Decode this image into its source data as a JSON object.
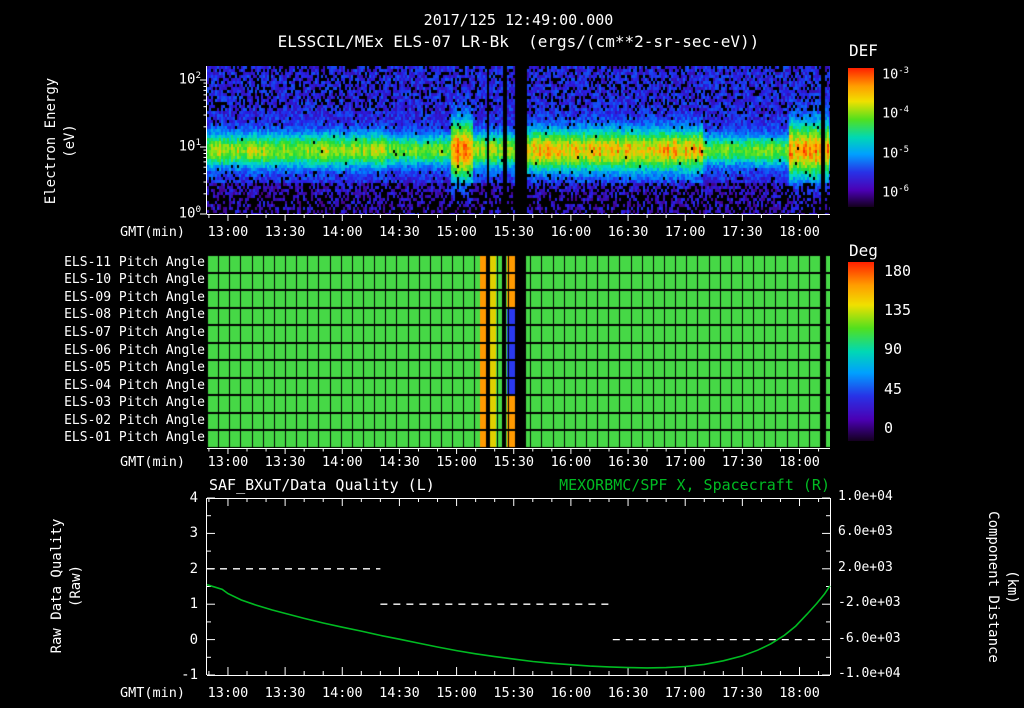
{
  "header": {
    "timestamp": "2017/125 12:49:00.000",
    "title": "ELSSCIL/MEx ELS-07 LR-Bk",
    "units": "(ergs/(cm**2-sr-sec-eV))"
  },
  "colors": {
    "background": "#000000",
    "text": "#ffffff",
    "accent_green": "#00bb22",
    "pitch_green": "#46d846"
  },
  "x_axis": {
    "label": "GMT(min)",
    "ticks": [
      "13:00",
      "13:30",
      "14:00",
      "14:30",
      "15:00",
      "15:30",
      "16:00",
      "16:30",
      "17:00",
      "17:30",
      "18:00"
    ]
  },
  "spectrogram": {
    "ylabel_line1": "Electron Energy",
    "ylabel_line2": "(eV)",
    "y_ticks": [
      "10^2",
      "10^1",
      "10^0"
    ],
    "colorbar_title": "DEF",
    "colorbar_ticks": [
      "10^-3",
      "10^-4",
      "10^-5",
      "10^-6"
    ]
  },
  "pitch": {
    "rows": [
      "ELS-11 Pitch Angle",
      "ELS-10 Pitch Angle",
      "ELS-09 Pitch Angle",
      "ELS-08 Pitch Angle",
      "ELS-07 Pitch Angle",
      "ELS-06 Pitch Angle",
      "ELS-05 Pitch Angle",
      "ELS-04 Pitch Angle",
      "ELS-03 Pitch Angle",
      "ELS-02 Pitch Angle",
      "ELS-01 Pitch Angle"
    ],
    "colorbar_title": "Deg",
    "colorbar_ticks": [
      "180",
      "135",
      "90",
      "45",
      "0"
    ]
  },
  "quality": {
    "left_title": "SAF_BXuT/Data Quality (L)",
    "right_title": "MEXORBMC/SPF X, Spacecraft (R)",
    "ylabel_left1": "Raw Data Quality",
    "ylabel_left2": "(Raw)",
    "ylabel_right1": "Component Distance",
    "ylabel_right2": "(km)",
    "left_ticks": [
      "4",
      "3",
      "2",
      "1",
      "0",
      "-1"
    ],
    "right_ticks": [
      "1.0e+04",
      "6.0e+03",
      "2.0e+03",
      "-2.0e+03",
      "-6.0e+03",
      "-1.0e+04"
    ]
  },
  "chart_data": [
    {
      "type": "heatmap",
      "name": "electron-energy-spectrogram",
      "title": "ELSSCIL/MEx ELS-07 LR-Bk",
      "units": "ergs/(cm**2-sr-sec-eV)",
      "x_start": "12:49",
      "x_end": "18:16",
      "x_ticks": [
        "13:00",
        "13:30",
        "14:00",
        "14:30",
        "15:00",
        "15:30",
        "16:00",
        "16:30",
        "17:00",
        "17:30",
        "18:00"
      ],
      "y_scale": "log",
      "y_range_eV": [
        1,
        162
      ],
      "colorbar": {
        "label": "DEF",
        "ticks_log10": [
          -3,
          -4,
          -5,
          -6
        ]
      },
      "features": {
        "main_band": "persistent electron flux band centered near 8-12 eV, green/cyan, ~1e-4 level",
        "background": "purple-blue noise near 1e-5.5 to 1e-6 with black dropout bins, denser black above 30 eV before 14:30 and below 3 eV",
        "burst_1500": "bright wide enhancement at ~15:00 reaching ~30 eV",
        "bright_interval": "15:36-17:05 band brighter, yellow-green",
        "right_edge_enhancement": "18:00-18:16 bright patch reaching ~40 eV",
        "data_gaps": [
          "15:15-15:18",
          "15:24-15:26",
          "15:31-15:37",
          "18:11-18:13"
        ]
      },
      "render": {
        "band_center_log10eV": 0.95,
        "base": {
          "amp": 0.5,
          "sigma": 0.17
        },
        "intervals": [
          {
            "m": [
              95,
              128
            ],
            "amp": 0.45,
            "sigma": 0.15
          },
          {
            "m": [
              128,
              140
            ],
            "amp": 0.68,
            "sigma": 0.3
          },
          {
            "m": [
              167,
              260
            ],
            "amp": 0.6,
            "sigma": 0.21
          },
          {
            "m": [
              260,
              305
            ],
            "amp": 0.44,
            "sigma": 0.15
          },
          {
            "m": [
              305,
              327
            ],
            "amp": 0.64,
            "sigma": 0.28
          }
        ],
        "gaps_min": [
          [
            146.5,
            148.5
          ],
          [
            155,
            157
          ],
          [
            162,
            167.5
          ],
          [
            322,
            324.5
          ]
        ]
      }
    },
    {
      "type": "heatmap",
      "name": "pitch-angle-panel",
      "rows": [
        "ELS-11 Pitch Angle",
        "ELS-10 Pitch Angle",
        "ELS-09 Pitch Angle",
        "ELS-08 Pitch Angle",
        "ELS-07 Pitch Angle",
        "ELS-06 Pitch Angle",
        "ELS-05 Pitch Angle",
        "ELS-04 Pitch Angle",
        "ELS-03 Pitch Angle",
        "ELS-02 Pitch Angle",
        "ELS-01 Pitch Angle"
      ],
      "x_ticks": [
        "13:00",
        "13:30",
        "14:00",
        "14:30",
        "15:00",
        "15:30",
        "16:00",
        "16:30",
        "17:00",
        "17:30",
        "18:00"
      ],
      "value_units": "degrees",
      "colorbar": {
        "label": "Deg",
        "min": 0,
        "max": 180,
        "ticks": [
          180,
          135,
          90,
          45,
          0
        ]
      },
      "typical_value_deg": 95,
      "render": {
        "base_color": "#46d846",
        "grid_minutes": 5.85,
        "anomalies": [
          {
            "m": [
              143.5,
              146.5
            ],
            "rows": [
              0,
              10
            ],
            "color": "#ff9a00",
            "approx_deg": 150
          },
          {
            "m": [
              148.5,
              151.5
            ],
            "rows": [
              0,
              10
            ],
            "color": "#e0d000",
            "approx_deg": 130
          },
          {
            "m": [
              157.5,
              161.5
            ],
            "rows": [
              0,
              2
            ],
            "color": "#ff9a00",
            "approx_deg": 150
          },
          {
            "m": [
              157.5,
              161.5
            ],
            "rows": [
              3,
              7
            ],
            "color": "#2a39f0",
            "approx_deg": 30
          },
          {
            "m": [
              157.5,
              161.5
            ],
            "rows": [
              8,
              10
            ],
            "color": "#ff9a00",
            "approx_deg": 150
          }
        ],
        "gaps_min": [
          [
            146.5,
            148.5
          ],
          [
            155,
            157
          ],
          [
            161.5,
            167.5
          ],
          [
            321.5,
            324.5
          ]
        ]
      }
    },
    {
      "type": "line",
      "name": "quality-and-spacecraft-distance",
      "x_start": "12:49",
      "x_end": "18:16",
      "x_ticks": [
        "13:00",
        "13:30",
        "14:00",
        "14:30",
        "15:00",
        "15:30",
        "16:00",
        "16:30",
        "17:00",
        "17:30",
        "18:00"
      ],
      "left_axis": {
        "label": "Raw Data Quality (Raw)",
        "min": -1,
        "max": 4,
        "ticks": [
          4,
          3,
          2,
          1,
          0,
          -1
        ]
      },
      "right_axis": {
        "label": "Component Distance (km)",
        "min": -10000,
        "max": 10000,
        "ticks": [
          10000,
          6000,
          2000,
          -2000,
          -6000,
          -10000
        ],
        "km_per_left_unit": 4000,
        "km_offset_at_left_zero": -6000
      },
      "series": [
        {
          "name": "SAF_BXuT/Data Quality (L)",
          "axis": "left",
          "style": "dashed",
          "color": "#ffffff",
          "segments_min_value": [
            [
              0,
              91,
              2
            ],
            [
              91,
              211,
              1
            ],
            [
              213,
              321,
              0
            ]
          ]
        },
        {
          "name": "MEXORBMC/SPF X, Spacecraft (R)",
          "axis": "right",
          "style": "solid",
          "color": "#00bb22",
          "points_min_leftunits": [
            [
              0,
              1.55
            ],
            [
              8,
              1.42
            ],
            [
              11,
              1.3
            ],
            [
              18,
              1.12
            ],
            [
              26,
              0.97
            ],
            [
              34,
              0.84
            ],
            [
              41,
              0.74
            ],
            [
              51,
              0.6
            ],
            [
              61,
              0.47
            ],
            [
              71,
              0.35
            ],
            [
              81,
              0.24
            ],
            [
              91,
              0.12
            ],
            [
              101,
              0.01
            ],
            [
              111,
              -0.1
            ],
            [
              121,
              -0.21
            ],
            [
              131,
              -0.31
            ],
            [
              141,
              -0.4
            ],
            [
              151,
              -0.48
            ],
            [
              161,
              -0.55
            ],
            [
              171,
              -0.62
            ],
            [
              181,
              -0.67
            ],
            [
              191,
              -0.71
            ],
            [
              201,
              -0.75
            ],
            [
              211,
              -0.77
            ],
            [
              221,
              -0.79
            ],
            [
              231,
              -0.8
            ],
            [
              241,
              -0.79
            ],
            [
              251,
              -0.76
            ],
            [
              261,
              -0.7
            ],
            [
              271,
              -0.6
            ],
            [
              281,
              -0.46
            ],
            [
              289,
              -0.3
            ],
            [
              296,
              -0.12
            ],
            [
              303,
              0.12
            ],
            [
              309,
              0.38
            ],
            [
              315,
              0.72
            ],
            [
              320,
              1.02
            ],
            [
              324,
              1.28
            ],
            [
              327,
              1.52
            ]
          ]
        }
      ]
    }
  ]
}
